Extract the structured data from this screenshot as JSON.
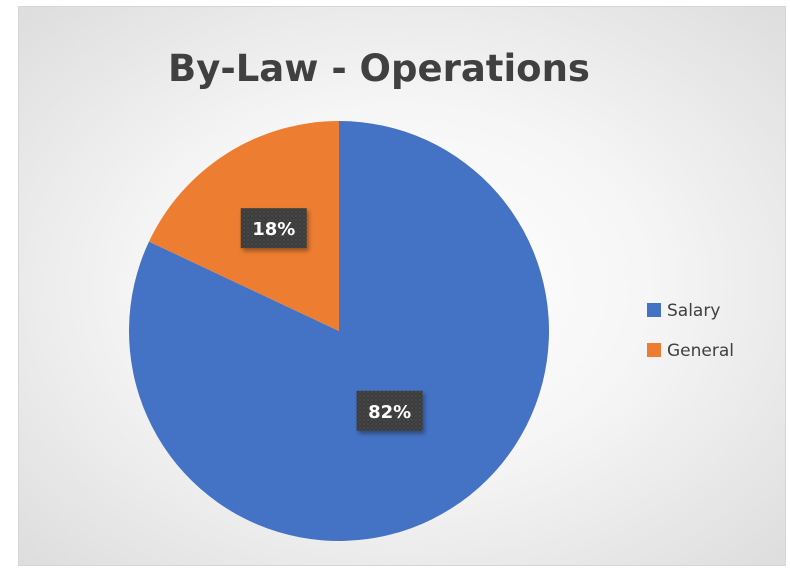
{
  "chart_data": {
    "type": "pie",
    "title": "By-Law - Operations",
    "categories": [
      "Salary",
      "General"
    ],
    "values": [
      82,
      18
    ],
    "data_labels": [
      "82%",
      "18%"
    ],
    "colors": [
      "#4472C4",
      "#ED7D31"
    ],
    "legend_position": "right",
    "start_angle": "12 o'clock",
    "direction": "clockwise"
  }
}
